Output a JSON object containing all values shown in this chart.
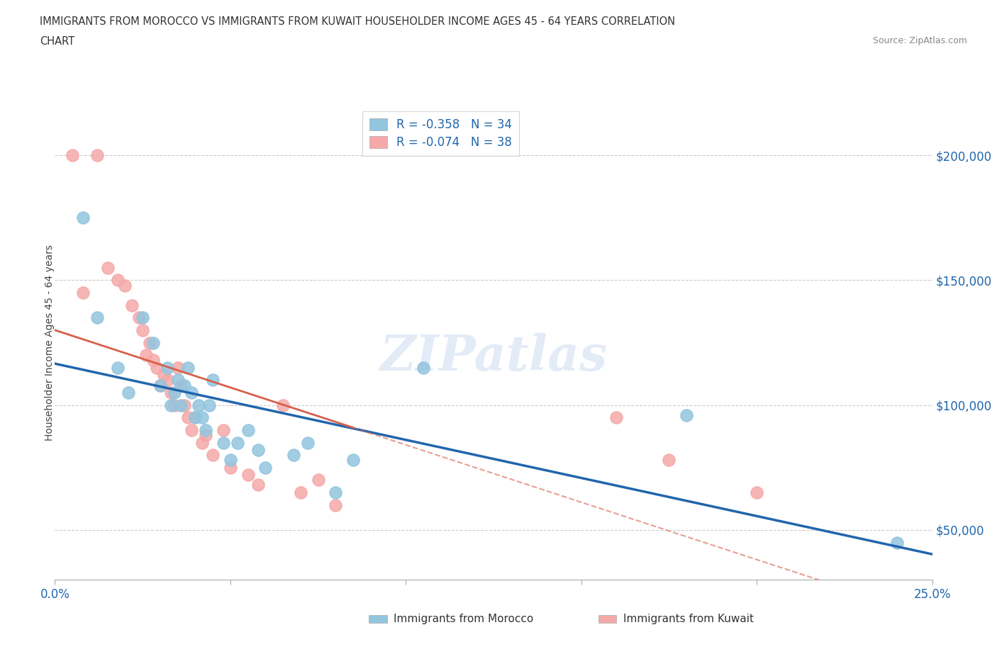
{
  "title_line1": "IMMIGRANTS FROM MOROCCO VS IMMIGRANTS FROM KUWAIT HOUSEHOLDER INCOME AGES 45 - 64 YEARS CORRELATION",
  "title_line2": "CHART",
  "source": "Source: ZipAtlas.com",
  "ylabel": "Householder Income Ages 45 - 64 years",
  "xlim": [
    0.0,
    0.25
  ],
  "ylim": [
    30000,
    220000
  ],
  "ytick_values": [
    50000,
    100000,
    150000,
    200000
  ],
  "grid_color": "#cccccc",
  "watermark": "ZIPatlas",
  "background_color": "#ffffff",
  "morocco_color": "#92c5de",
  "kuwait_color": "#f4a9a8",
  "morocco_line_color": "#2166ac",
  "kuwait_line_color": "#d6604d",
  "morocco_R": -0.358,
  "morocco_N": 34,
  "kuwait_R": -0.074,
  "kuwait_N": 38,
  "morocco_x": [
    0.008,
    0.012,
    0.018,
    0.021,
    0.025,
    0.028,
    0.03,
    0.032,
    0.033,
    0.034,
    0.035,
    0.036,
    0.037,
    0.038,
    0.039,
    0.04,
    0.041,
    0.042,
    0.043,
    0.044,
    0.045,
    0.048,
    0.05,
    0.052,
    0.055,
    0.058,
    0.06,
    0.068,
    0.072,
    0.08,
    0.085,
    0.105,
    0.18,
    0.24
  ],
  "morocco_y": [
    175000,
    135000,
    115000,
    105000,
    135000,
    125000,
    108000,
    115000,
    100000,
    105000,
    110000,
    100000,
    108000,
    115000,
    105000,
    95000,
    100000,
    95000,
    90000,
    100000,
    110000,
    85000,
    78000,
    85000,
    90000,
    82000,
    75000,
    80000,
    85000,
    65000,
    78000,
    115000,
    96000,
    45000
  ],
  "kuwait_x": [
    0.005,
    0.008,
    0.012,
    0.015,
    0.018,
    0.02,
    0.022,
    0.024,
    0.025,
    0.026,
    0.027,
    0.028,
    0.029,
    0.03,
    0.031,
    0.032,
    0.033,
    0.034,
    0.035,
    0.036,
    0.037,
    0.038,
    0.039,
    0.04,
    0.042,
    0.043,
    0.045,
    0.048,
    0.05,
    0.055,
    0.058,
    0.065,
    0.07,
    0.075,
    0.08,
    0.16,
    0.175,
    0.2
  ],
  "kuwait_y": [
    200000,
    145000,
    200000,
    155000,
    150000,
    148000,
    140000,
    135000,
    130000,
    120000,
    125000,
    118000,
    115000,
    108000,
    112000,
    110000,
    105000,
    100000,
    115000,
    108000,
    100000,
    95000,
    90000,
    95000,
    85000,
    88000,
    80000,
    90000,
    75000,
    72000,
    68000,
    100000,
    65000,
    70000,
    60000,
    95000,
    78000,
    65000
  ]
}
